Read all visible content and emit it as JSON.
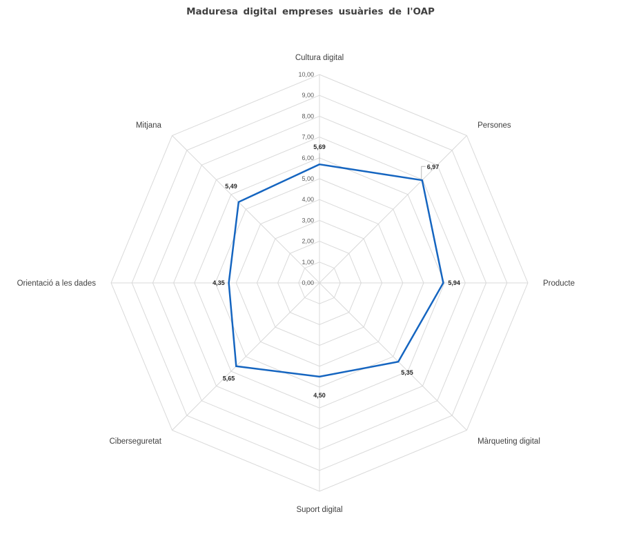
{
  "chart_data": {
    "type": "radar",
    "title": "Maduresa digital empreses usuàries de l'OAP",
    "categories": [
      "Cultura digital",
      "Persones",
      "Producte",
      "Màrqueting digital",
      "Suport digital",
      "Ciberseguretat",
      "Orientació a les dades",
      "Mitjana"
    ],
    "series": [
      {
        "name": "",
        "values": [
          5.69,
          6.97,
          5.94,
          5.35,
          4.5,
          5.65,
          4.35,
          5.49
        ],
        "value_labels": [
          "5,69",
          "6,97",
          "5,94",
          "5,35",
          "4,50",
          "5,65",
          "4,35",
          "5,49"
        ],
        "color": "#1565c0"
      }
    ],
    "rlim": [
      0,
      10
    ],
    "ticks": [
      "0,00",
      "1,00",
      "2,00",
      "3,00",
      "4,00",
      "5,00",
      "6,00",
      "7,00",
      "8,00",
      "9,00",
      "10,00"
    ],
    "grid": true,
    "legend": "none"
  }
}
